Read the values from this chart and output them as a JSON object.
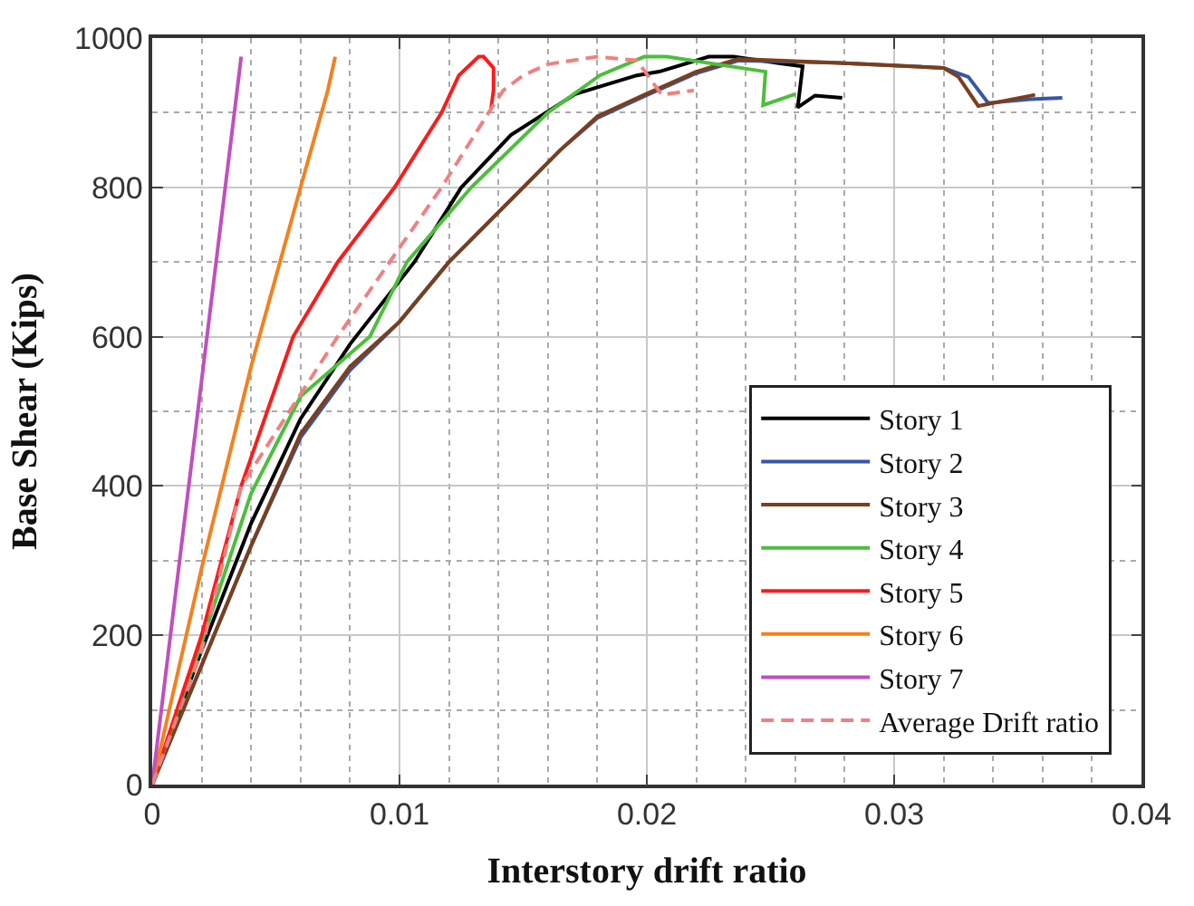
{
  "chart_data": {
    "type": "line",
    "xlabel": "Interstory drift ratio",
    "ylabel": "Base Shear (Kips)",
    "xlim": [
      0,
      0.04
    ],
    "xticks": [
      0,
      0.01,
      0.02,
      0.03,
      0.04
    ],
    "ylim": [
      0,
      1000
    ],
    "yticks": [
      0,
      200,
      400,
      600,
      800,
      1000
    ],
    "grid": true,
    "legend": "bottom right",
    "marker": "none",
    "series": [
      {
        "name": "Story 1",
        "color": "#000000",
        "x": [
          0,
          0.002,
          0.004,
          0.006,
          0.008,
          0.0106,
          0.0125,
          0.0145,
          0.0171,
          0.0196,
          0.0205,
          0.0225,
          0.0235,
          0.0256,
          0.0263,
          0.0261,
          0.0268,
          0.0279
        ],
        "values": [
          0,
          180,
          350,
          490,
          590,
          700,
          800,
          870,
          925,
          950,
          955,
          975,
          975,
          965,
          962,
          907,
          923,
          920
        ]
      },
      {
        "name": "Story 2",
        "color": "#3656a8",
        "x": [
          0,
          0.002,
          0.004,
          0.006,
          0.008,
          0.01,
          0.012,
          0.015,
          0.0165,
          0.018,
          0.0199,
          0.022,
          0.0237,
          0.0276,
          0.032,
          0.033,
          0.0338,
          0.0355,
          0.0368
        ],
        "values": [
          0,
          160,
          320,
          465,
          555,
          620,
          700,
          800,
          850,
          893,
          922,
          953,
          970,
          967,
          960,
          948,
          913,
          918,
          920
        ]
      },
      {
        "name": "Story 3",
        "color": "#7b3f1b",
        "x": [
          0,
          0.002,
          0.004,
          0.006,
          0.008,
          0.01,
          0.012,
          0.015,
          0.0165,
          0.018,
          0.0199,
          0.022,
          0.0237,
          0.0276,
          0.032,
          0.0326,
          0.0334,
          0.0357
        ],
        "values": [
          0,
          160,
          320,
          470,
          560,
          620,
          700,
          800,
          850,
          895,
          924,
          955,
          972,
          967,
          960,
          948,
          909,
          924
        ]
      },
      {
        "name": "Story 4",
        "color": "#4cbf3c",
        "x": [
          0,
          0.002,
          0.004,
          0.006,
          0.0088,
          0.0103,
          0.0129,
          0.016,
          0.0181,
          0.0199,
          0.0208,
          0.0248,
          0.0247,
          0.026
        ],
        "values": [
          0,
          190,
          390,
          520,
          600,
          700,
          800,
          900,
          950,
          975,
          975,
          955,
          910,
          925
        ]
      },
      {
        "name": "Story 5",
        "color": "#ff1a1a",
        "x": [
          0,
          0.002,
          0.0036,
          0.0057,
          0.0075,
          0.0098,
          0.0117,
          0.0124,
          0.0132,
          0.0134,
          0.0138,
          0.0138,
          0.0137
        ],
        "values": [
          0,
          200,
          400,
          600,
          700,
          800,
          900,
          950,
          975,
          975,
          960,
          930,
          905
        ]
      },
      {
        "name": "Story 6",
        "color": "#f5801e",
        "x": [
          0,
          0.002,
          0.004,
          0.006,
          0.0071,
          0.0073,
          0.0074
        ],
        "values": [
          0,
          290,
          560,
          800,
          930,
          960,
          975
        ]
      },
      {
        "name": "Story 7",
        "color": "#c04fbf",
        "x": [
          0,
          0.0036
        ],
        "values": [
          0,
          975
        ]
      },
      {
        "name": "Average Drift ratio",
        "color": "#f08080",
        "line_style": "dashed",
        "x": [
          0,
          0.002,
          0.0036,
          0.0075,
          0.0117,
          0.0136,
          0.0142,
          0.015,
          0.016,
          0.018,
          0.0196,
          0.0206,
          0.0219
        ],
        "values": [
          0,
          180,
          400,
          600,
          800,
          900,
          930,
          950,
          965,
          975,
          970,
          924,
          930
        ]
      }
    ]
  }
}
